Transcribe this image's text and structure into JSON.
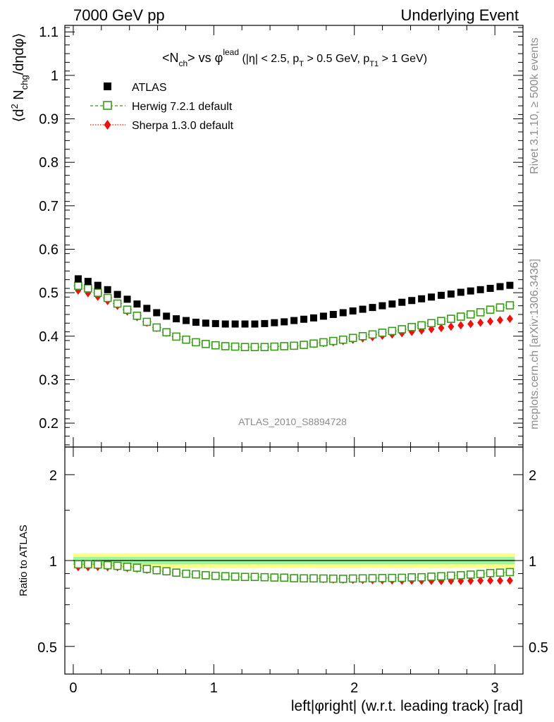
{
  "header": {
    "left_label": "7000 GeV pp",
    "right_label": "Underlying Event"
  },
  "side_labels": {
    "rivet": "Rivet 3.1.10, ≥ 500k events",
    "mcplots": "mcplots.cern.ch [arXiv:1306.3436]"
  },
  "chart_data": [
    {
      "type": "scatter",
      "title": "<N_ch> vs φ^lead (|η| < 2.5, p_T > 0.5 GeV, p_T1 > 1 GeV)",
      "title_parts": {
        "a": "<N",
        "a_sub": "ch",
        "b": "> vs φ",
        "b_sup": "lead",
        "c": " (|η| < 2.5, p",
        "c_sub": "T",
        "d": " > 0.5 GeV, p",
        "d_sub": "T1",
        "e": " > 1 GeV)"
      },
      "ylabel": "⟨d² N_chg/dηdφ⟩",
      "ylabel_parts": {
        "a": "⟨d",
        "a_sup": "2",
        "b": " N",
        "b_sub": "chg",
        "c": "/dηdφ⟩"
      },
      "xlabel": "left|φright| (w.r.t. leading track) [rad]",
      "watermark": "ATLAS_2010_S8894728",
      "xlim": [
        -0.06,
        3.2
      ],
      "ylim": [
        0.145,
        1.115
      ],
      "yticks": [
        0.2,
        0.3,
        0.4,
        0.5,
        0.6,
        0.7,
        0.8,
        0.9,
        1.0,
        1.1
      ],
      "ytick_labels": [
        "0.2",
        "0.3",
        "0.4",
        "0.5",
        "0.6",
        "0.7",
        "0.8",
        "0.9",
        "1",
        "1.1"
      ],
      "xticks": [
        0,
        1,
        2,
        3
      ],
      "xtick_labels": [
        "0",
        "1",
        "2",
        "3"
      ],
      "legend_position": "top-left",
      "x": [
        0.0349,
        0.1047,
        0.1745,
        0.2443,
        0.3142,
        0.384,
        0.4538,
        0.5236,
        0.5934,
        0.6632,
        0.733,
        0.8029,
        0.8727,
        0.9425,
        1.0123,
        1.0821,
        1.1519,
        1.2217,
        1.2915,
        1.3614,
        1.4312,
        1.501,
        1.5708,
        1.6406,
        1.7104,
        1.7802,
        1.85,
        1.9199,
        1.9897,
        2.0595,
        2.1293,
        2.1991,
        2.2689,
        2.3387,
        2.4086,
        2.4784,
        2.5482,
        2.618,
        2.6878,
        2.7576,
        2.8274,
        2.8972,
        2.9671,
        3.0369,
        3.1067
      ],
      "series": [
        {
          "name": "ATLAS",
          "marker": "square-filled",
          "color": "#000000",
          "values": [
            0.532,
            0.526,
            0.517,
            0.507,
            0.496,
            0.485,
            0.474,
            0.464,
            0.454,
            0.446,
            0.44,
            0.436,
            0.432,
            0.43,
            0.429,
            0.428,
            0.428,
            0.428,
            0.428,
            0.429,
            0.431,
            0.433,
            0.436,
            0.439,
            0.442,
            0.446,
            0.45,
            0.454,
            0.458,
            0.462,
            0.466,
            0.47,
            0.474,
            0.478,
            0.482,
            0.486,
            0.49,
            0.494,
            0.497,
            0.501,
            0.504,
            0.507,
            0.51,
            0.514,
            0.517
          ]
        },
        {
          "name": "Herwig 7.2.1 default",
          "marker": "square-open",
          "color": "#3a9a1a",
          "values": [
            0.516,
            0.51,
            0.5,
            0.488,
            0.475,
            0.461,
            0.447,
            0.433,
            0.42,
            0.409,
            0.399,
            0.392,
            0.386,
            0.382,
            0.379,
            0.377,
            0.376,
            0.375,
            0.375,
            0.375,
            0.376,
            0.377,
            0.378,
            0.38,
            0.383,
            0.386,
            0.389,
            0.392,
            0.396,
            0.4,
            0.404,
            0.408,
            0.412,
            0.416,
            0.421,
            0.425,
            0.43,
            0.435,
            0.44,
            0.445,
            0.45,
            0.455,
            0.461,
            0.466,
            0.471
          ]
        },
        {
          "name": "Sherpa 1.3.0 default",
          "marker": "diamond-filled",
          "color": "#ee1111",
          "values": [
            0.505,
            0.499,
            0.491,
            0.481,
            0.47,
            0.457,
            0.444,
            0.431,
            0.419,
            0.408,
            0.399,
            0.392,
            0.386,
            0.382,
            0.379,
            0.377,
            0.376,
            0.375,
            0.375,
            0.375,
            0.376,
            0.377,
            0.378,
            0.38,
            0.382,
            0.384,
            0.386,
            0.389,
            0.392,
            0.395,
            0.398,
            0.401,
            0.404,
            0.407,
            0.41,
            0.413,
            0.416,
            0.419,
            0.422,
            0.425,
            0.428,
            0.431,
            0.434,
            0.437,
            0.44
          ]
        }
      ]
    },
    {
      "type": "scatter",
      "ylabel": "Ratio to ATLAS",
      "scale": "log",
      "ylim": [
        0.4,
        2.5
      ],
      "yticks": [
        0.5,
        1,
        2
      ],
      "ytick_labels": [
        "0.5",
        "1",
        "2"
      ],
      "band_inner": [
        0.97,
        1.03
      ],
      "band_outer": [
        0.94,
        1.06
      ],
      "series": [
        {
          "name": "Herwig 7.2.1 default",
          "color": "#3a9a1a",
          "values": [
            0.97,
            0.97,
            0.968,
            0.963,
            0.958,
            0.951,
            0.944,
            0.935,
            0.925,
            0.917,
            0.907,
            0.899,
            0.894,
            0.888,
            0.884,
            0.881,
            0.878,
            0.876,
            0.876,
            0.874,
            0.872,
            0.871,
            0.867,
            0.866,
            0.866,
            0.865,
            0.864,
            0.863,
            0.865,
            0.866,
            0.867,
            0.868,
            0.869,
            0.87,
            0.873,
            0.874,
            0.878,
            0.881,
            0.885,
            0.888,
            0.893,
            0.897,
            0.904,
            0.907,
            0.911
          ]
        },
        {
          "name": "Sherpa 1.3.0 default",
          "color": "#ee1111",
          "values": [
            0.949,
            0.949,
            0.95,
            0.949,
            0.948,
            0.942,
            0.937,
            0.929,
            0.923,
            0.915,
            0.907,
            0.899,
            0.894,
            0.888,
            0.883,
            0.881,
            0.878,
            0.876,
            0.876,
            0.874,
            0.872,
            0.871,
            0.867,
            0.866,
            0.864,
            0.861,
            0.858,
            0.857,
            0.856,
            0.855,
            0.854,
            0.853,
            0.852,
            0.851,
            0.851,
            0.85,
            0.849,
            0.848,
            0.849,
            0.848,
            0.849,
            0.85,
            0.851,
            0.85,
            0.851
          ]
        }
      ]
    }
  ]
}
